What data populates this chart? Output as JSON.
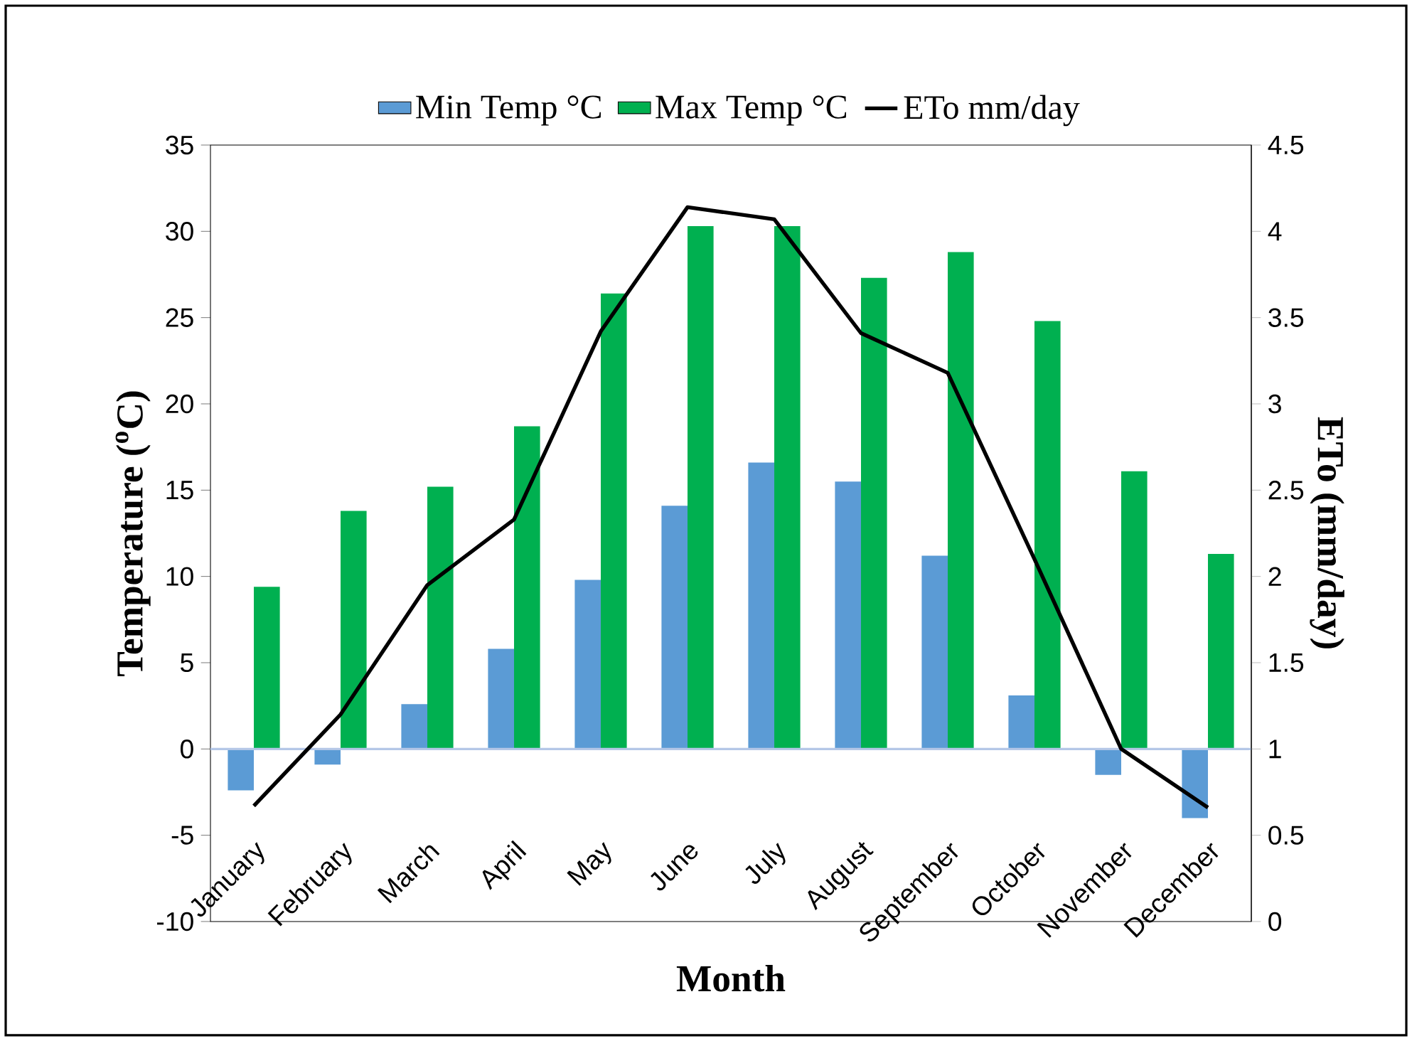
{
  "chart_data": {
    "type": "bar",
    "categories": [
      "January",
      "February",
      "March",
      "April",
      "May",
      "June",
      "July",
      "August",
      "September",
      "October",
      "November",
      "December"
    ],
    "series": [
      {
        "name": "Min Temp °C",
        "color": "#5b9bd5",
        "values": [
          -2.4,
          -0.9,
          2.6,
          5.8,
          9.8,
          14.1,
          16.6,
          15.5,
          11.2,
          3.1,
          -1.5,
          -4.0
        ]
      },
      {
        "name": "Max Temp °C",
        "color": "#00b050",
        "values": [
          9.4,
          13.8,
          15.2,
          18.7,
          26.4,
          30.3,
          30.3,
          27.3,
          28.8,
          24.8,
          16.1,
          11.3
        ]
      },
      {
        "name": "ETo mm/day",
        "type": "line",
        "axis": "y2",
        "color": "#000000",
        "values": [
          0.67,
          1.2,
          1.95,
          2.33,
          3.42,
          4.14,
          4.07,
          3.41,
          3.18,
          2.1,
          1.0,
          0.66
        ]
      }
    ],
    "xlabel": "Month",
    "ylabel": "Temperature  ($^{o}$C)",
    "y2label": "ETo (mm/day)",
    "ylim": [
      -10,
      35
    ],
    "yticks": [
      -10,
      -5,
      0,
      5,
      10,
      15,
      20,
      25,
      30,
      35
    ],
    "y2lim": [
      0,
      4.5
    ],
    "y2ticks": [
      0,
      0.5,
      1,
      1.5,
      2,
      2.5,
      3,
      3.5,
      4,
      4.5
    ],
    "ref_lines": [
      {
        "axis": "y",
        "value": 0,
        "color": "#b4c7e7"
      }
    ],
    "legend": "top"
  }
}
